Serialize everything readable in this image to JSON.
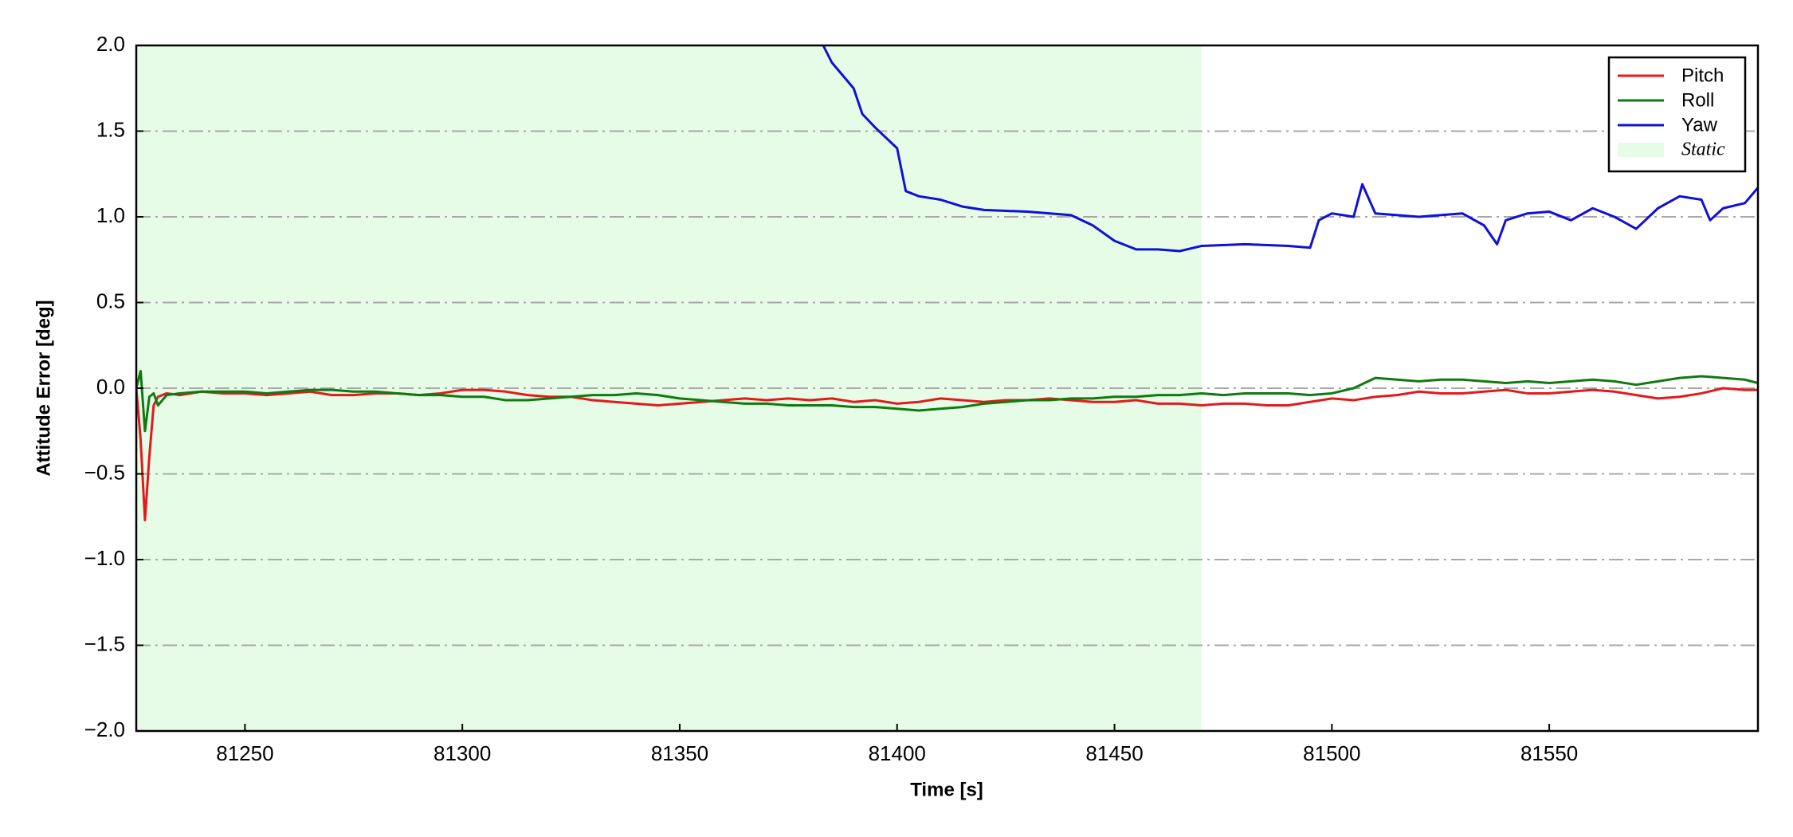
{
  "chart_data": {
    "type": "line",
    "xlabel": "Time [s]",
    "ylabel": "Attitude Error [deg]",
    "xlim": [
      81225,
      81598
    ],
    "ylim": [
      -2,
      2
    ],
    "xticks": [
      81250,
      81300,
      81350,
      81400,
      81450,
      81500,
      81550
    ],
    "yticks": [
      {
        "value": -2,
        "label": "−2.0"
      },
      {
        "value": -1.5,
        "label": "−1.5"
      },
      {
        "value": -1,
        "label": "−1.0"
      },
      {
        "value": -0.5,
        "label": "−0.5"
      },
      {
        "value": 0,
        "label": "0.0"
      },
      0.5,
      {
        "value": 1,
        "label": "1.0"
      },
      1.5,
      {
        "value": 2,
        "label": "2.0"
      }
    ],
    "grid": true,
    "legend": "upper right",
    "span": {
      "name": "Static",
      "color": "#e6fce6",
      "x": [
        81225,
        81470
      ]
    },
    "series": [
      {
        "name": "Pitch",
        "color": "#e31a1c",
        "x": [
          81225,
          81226,
          81227,
          81228,
          81229,
          81230,
          81232,
          81235,
          81240,
          81245,
          81250,
          81255,
          81260,
          81265,
          81270,
          81275,
          81280,
          81285,
          81290,
          81295,
          81300,
          81305,
          81310,
          81315,
          81320,
          81325,
          81330,
          81335,
          81340,
          81345,
          81350,
          81355,
          81360,
          81365,
          81370,
          81375,
          81380,
          81385,
          81390,
          81395,
          81400,
          81405,
          81410,
          81415,
          81420,
          81425,
          81430,
          81435,
          81440,
          81445,
          81450,
          81455,
          81460,
          81465,
          81470,
          81475,
          81480,
          81485,
          81490,
          81495,
          81500,
          81505,
          81510,
          81515,
          81520,
          81525,
          81530,
          81535,
          81540,
          81545,
          81550,
          81555,
          81560,
          81565,
          81570,
          81575,
          81580,
          81585,
          81590,
          81595,
          81598
        ],
        "values": [
          0.0,
          -0.3,
          -0.77,
          -0.4,
          -0.1,
          -0.05,
          -0.03,
          -0.04,
          -0.02,
          -0.03,
          -0.03,
          -0.04,
          -0.03,
          -0.02,
          -0.04,
          -0.04,
          -0.03,
          -0.03,
          -0.04,
          -0.03,
          -0.01,
          -0.01,
          -0.02,
          -0.04,
          -0.05,
          -0.05,
          -0.07,
          -0.08,
          -0.09,
          -0.1,
          -0.09,
          -0.08,
          -0.07,
          -0.06,
          -0.07,
          -0.06,
          -0.07,
          -0.06,
          -0.08,
          -0.07,
          -0.09,
          -0.08,
          -0.06,
          -0.07,
          -0.08,
          -0.07,
          -0.07,
          -0.06,
          -0.07,
          -0.08,
          -0.08,
          -0.07,
          -0.09,
          -0.09,
          -0.1,
          -0.09,
          -0.09,
          -0.1,
          -0.1,
          -0.08,
          -0.06,
          -0.07,
          -0.05,
          -0.04,
          -0.02,
          -0.03,
          -0.03,
          -0.02,
          -0.01,
          -0.03,
          -0.03,
          -0.02,
          -0.01,
          -0.02,
          -0.04,
          -0.06,
          -0.05,
          -0.03,
          0.0,
          -0.01,
          -0.01
        ]
      },
      {
        "name": "Roll",
        "color": "#107a10",
        "x": [
          81225,
          81226,
          81227,
          81228,
          81229,
          81230,
          81232,
          81235,
          81240,
          81245,
          81250,
          81255,
          81260,
          81265,
          81270,
          81275,
          81280,
          81285,
          81290,
          81295,
          81300,
          81305,
          81310,
          81315,
          81320,
          81325,
          81330,
          81335,
          81340,
          81345,
          81350,
          81355,
          81360,
          81365,
          81370,
          81375,
          81380,
          81385,
          81390,
          81395,
          81400,
          81405,
          81410,
          81415,
          81420,
          81425,
          81430,
          81435,
          81440,
          81445,
          81450,
          81455,
          81460,
          81465,
          81470,
          81475,
          81480,
          81485,
          81490,
          81495,
          81500,
          81505,
          81510,
          81515,
          81520,
          81525,
          81530,
          81535,
          81540,
          81545,
          81550,
          81555,
          81560,
          81565,
          81570,
          81575,
          81580,
          81585,
          81590,
          81595,
          81598
        ],
        "values": [
          0.0,
          0.1,
          -0.25,
          -0.05,
          -0.03,
          -0.1,
          -0.04,
          -0.03,
          -0.02,
          -0.02,
          -0.02,
          -0.03,
          -0.02,
          -0.01,
          -0.01,
          -0.02,
          -0.02,
          -0.03,
          -0.04,
          -0.04,
          -0.05,
          -0.05,
          -0.07,
          -0.07,
          -0.06,
          -0.05,
          -0.04,
          -0.04,
          -0.03,
          -0.04,
          -0.06,
          -0.07,
          -0.08,
          -0.09,
          -0.09,
          -0.1,
          -0.1,
          -0.1,
          -0.11,
          -0.11,
          -0.12,
          -0.13,
          -0.12,
          -0.11,
          -0.09,
          -0.08,
          -0.07,
          -0.07,
          -0.06,
          -0.06,
          -0.05,
          -0.05,
          -0.04,
          -0.04,
          -0.03,
          -0.04,
          -0.03,
          -0.03,
          -0.03,
          -0.04,
          -0.03,
          0.0,
          0.06,
          0.05,
          0.04,
          0.05,
          0.05,
          0.04,
          0.03,
          0.04,
          0.03,
          0.04,
          0.05,
          0.04,
          0.02,
          0.04,
          0.06,
          0.07,
          0.06,
          0.05,
          0.03
        ]
      },
      {
        "name": "Yaw",
        "color": "#1010d8",
        "x": [
          81383,
          81385,
          81390,
          81392,
          81395,
          81400,
          81402,
          81405,
          81410,
          81415,
          81420,
          81430,
          81440,
          81445,
          81450,
          81455,
          81460,
          81465,
          81470,
          81480,
          81490,
          81495,
          81497,
          81500,
          81505,
          81507,
          81510,
          81520,
          81530,
          81535,
          81538,
          81540,
          81545,
          81550,
          81555,
          81560,
          81565,
          81570,
          81575,
          81580,
          81585,
          81587,
          81590,
          81595,
          81598
        ],
        "values": [
          2.0,
          1.9,
          1.75,
          1.6,
          1.52,
          1.4,
          1.15,
          1.12,
          1.1,
          1.06,
          1.04,
          1.03,
          1.01,
          0.95,
          0.86,
          0.81,
          0.81,
          0.8,
          0.83,
          0.84,
          0.83,
          0.82,
          0.98,
          1.02,
          1.0,
          1.19,
          1.02,
          1.0,
          1.02,
          0.95,
          0.84,
          0.98,
          1.02,
          1.03,
          0.98,
          1.05,
          1.0,
          0.93,
          1.05,
          1.12,
          1.1,
          0.98,
          1.05,
          1.08,
          1.17
        ]
      }
    ]
  }
}
